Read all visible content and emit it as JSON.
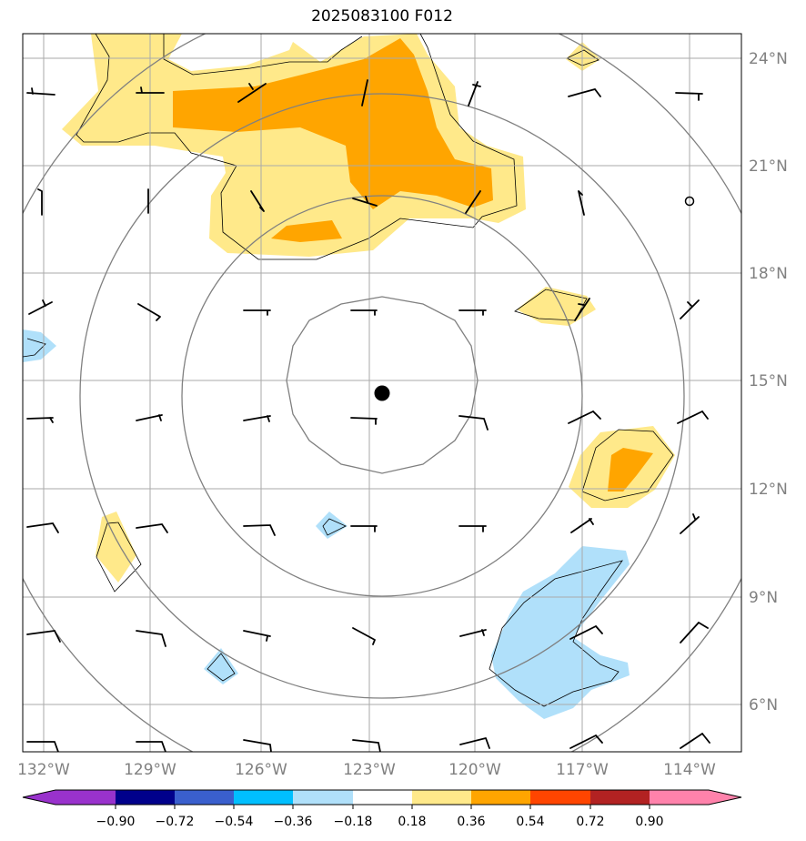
{
  "title": "2025083100 F012",
  "map": {
    "lon_labels": [
      "132°W",
      "129°W",
      "126°W",
      "123°W",
      "120°W",
      "117°W",
      "114°W"
    ],
    "lat_labels": [
      "24°N",
      "21°N",
      "18°N",
      "15°N",
      "12°N",
      "9°N",
      "6°N"
    ],
    "storm_center": {
      "lon": -122.6,
      "lat": 14.7
    },
    "colors": {
      "gridline": "#aaaaaa",
      "range_ring": "#808080",
      "pos1": "#ffe98a",
      "pos2": "#ffa500",
      "neg1": "#b0e0fa",
      "barb": "#000000"
    }
  },
  "colorbar": {
    "tick_labels": [
      "−0.90",
      "−0.72",
      "−0.54",
      "−0.36",
      "−0.18",
      "0.18",
      "0.36",
      "0.54",
      "0.72",
      "0.90"
    ],
    "colors": [
      "#9932cc",
      "#00008b",
      "#3a5fcd",
      "#00bfff",
      "#b0e0fa",
      "#ffffff",
      "#ffe98a",
      "#ffa500",
      "#ff4500",
      "#b22222",
      "#ff82ab"
    ]
  }
}
